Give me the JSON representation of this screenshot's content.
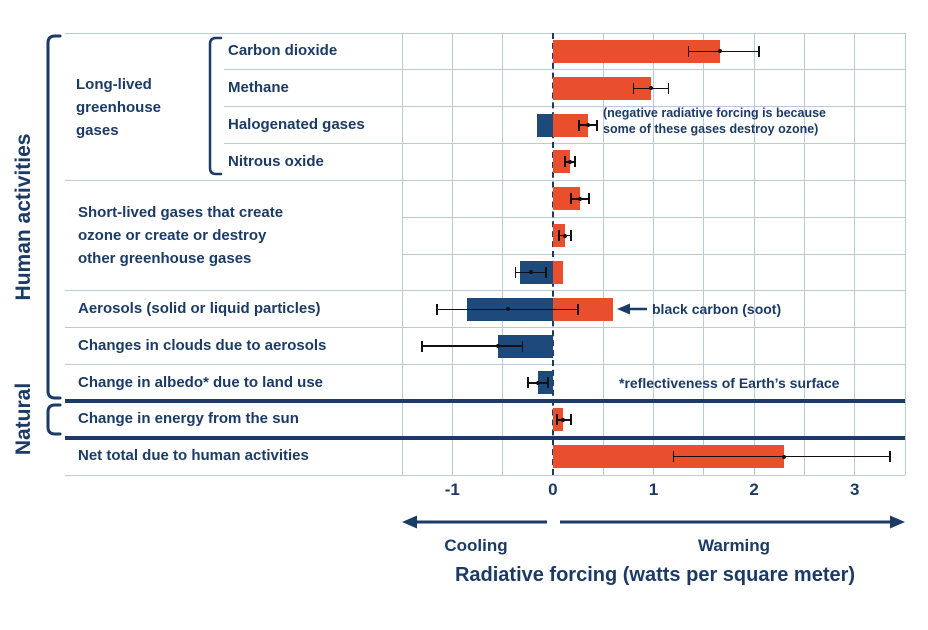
{
  "colors": {
    "warming": "#e94f2d",
    "cooling": "#1e4a7b",
    "text": "#1b3b66",
    "grid": "#b9cadb",
    "zero_line": "#1b3b66",
    "divider": "#1b3b66",
    "error": "#111111"
  },
  "side": {
    "human": "Human activities",
    "natural": "Natural",
    "long_lived_lines": [
      "Long-lived",
      "greenhouse",
      "gases"
    ],
    "short_lived_lines": [
      "Short-lived gases that create",
      "ozone or create or destroy",
      "other greenhouse gases"
    ]
  },
  "chart_data": {
    "type": "bar",
    "orientation": "horizontal",
    "xlabel": "Radiative forcing (watts per square meter)",
    "xlim": [
      -1.5,
      3.5
    ],
    "ticks": [
      -1,
      0,
      1,
      2,
      3
    ],
    "grid_step": 0.5,
    "zero_line": "dashed",
    "axis_annotations": {
      "negative": "Cooling",
      "positive": "Warming"
    },
    "rows": [
      {
        "label": "Carbon dioxide",
        "label_style": "gas",
        "group": "Human activities / Long-lived greenhouse gases",
        "bars": [
          {
            "value": 1.66,
            "kind": "warming"
          }
        ],
        "error": {
          "min": 1.35,
          "max": 2.05,
          "center": 1.66
        }
      },
      {
        "label": "Methane",
        "label_style": "gas",
        "group": "Human activities / Long-lived greenhouse gases",
        "bars": [
          {
            "value": 0.98,
            "kind": "warming"
          }
        ],
        "error": {
          "min": 0.8,
          "max": 1.15,
          "center": 0.98
        }
      },
      {
        "label": "Halogenated gases",
        "label_style": "gas",
        "group": "Human activities / Long-lived greenhouse gases",
        "bars": [
          {
            "value": -0.16,
            "kind": "cooling"
          },
          {
            "value": 0.35,
            "kind": "warming"
          }
        ],
        "error": {
          "min": 0.26,
          "max": 0.44,
          "center": 0.35
        }
      },
      {
        "label": "Nitrous oxide",
        "label_style": "gas",
        "group": "Human activities / Long-lived greenhouse gases",
        "bars": [
          {
            "value": 0.17,
            "kind": "warming"
          }
        ],
        "error": {
          "min": 0.12,
          "max": 0.22,
          "center": 0.17
        }
      },
      {
        "label": "",
        "label_style": "none",
        "group": "Human activities / Short-lived gases that create ozone or create or destroy other greenhouse gases",
        "bars": [
          {
            "value": 0.27,
            "kind": "warming"
          }
        ],
        "error": {
          "min": 0.18,
          "max": 0.36,
          "center": 0.27
        }
      },
      {
        "label": "",
        "label_style": "none",
        "group": "Human activities / Short-lived gases that create ozone or create or destroy other greenhouse gases",
        "bars": [
          {
            "value": 0.12,
            "kind": "warming"
          }
        ],
        "error": {
          "min": 0.06,
          "max": 0.18,
          "center": 0.12
        }
      },
      {
        "label": "",
        "label_style": "none",
        "group": "Human activities / Short-lived gases that create ozone or create or destroy other greenhouse gases",
        "bars": [
          {
            "value": -0.33,
            "kind": "cooling"
          },
          {
            "value": 0.1,
            "kind": "warming"
          }
        ],
        "error": {
          "min": -0.37,
          "max": -0.07,
          "center": -0.22
        }
      },
      {
        "label": "Aerosols (solid or liquid particles)",
        "label_style": "main",
        "group": "Human activities",
        "bars": [
          {
            "value": -0.85,
            "kind": "cooling"
          },
          {
            "value": 0.6,
            "kind": "warming",
            "note": "black carbon (soot)"
          }
        ],
        "error": {
          "min": -1.15,
          "max": 0.25,
          "center": -0.45
        }
      },
      {
        "label": "Changes in clouds due to aerosols",
        "label_style": "main",
        "group": "Human activities",
        "bars": [
          {
            "value": -0.55,
            "kind": "cooling"
          }
        ],
        "error": {
          "min": -1.3,
          "max": -0.3,
          "center": -0.55
        }
      },
      {
        "label": "Change in albedo* due to land use",
        "label_style": "main",
        "group": "Human activities",
        "bars": [
          {
            "value": -0.15,
            "kind": "cooling"
          }
        ],
        "error": {
          "min": -0.25,
          "max": -0.05,
          "center": -0.15
        }
      },
      {
        "label": "Change in energy from the sun",
        "label_style": "main",
        "group": "Natural",
        "bars": [
          {
            "value": 0.1,
            "kind": "warming"
          }
        ],
        "error": {
          "min": 0.04,
          "max": 0.18,
          "center": 0.1
        }
      },
      {
        "label": "Net total due to human activities",
        "label_style": "main",
        "group": "Total",
        "bars": [
          {
            "value": 2.3,
            "kind": "warming"
          }
        ],
        "error": {
          "min": 1.2,
          "max": 3.35,
          "center": 2.3
        }
      }
    ],
    "annotations": {
      "halogenated_note": [
        "(negative radiative forcing is because",
        "some of these gases destroy ozone)"
      ],
      "black_carbon": "black carbon (soot)",
      "albedo_note": "*reflectiveness of Earth’s surface"
    }
  }
}
